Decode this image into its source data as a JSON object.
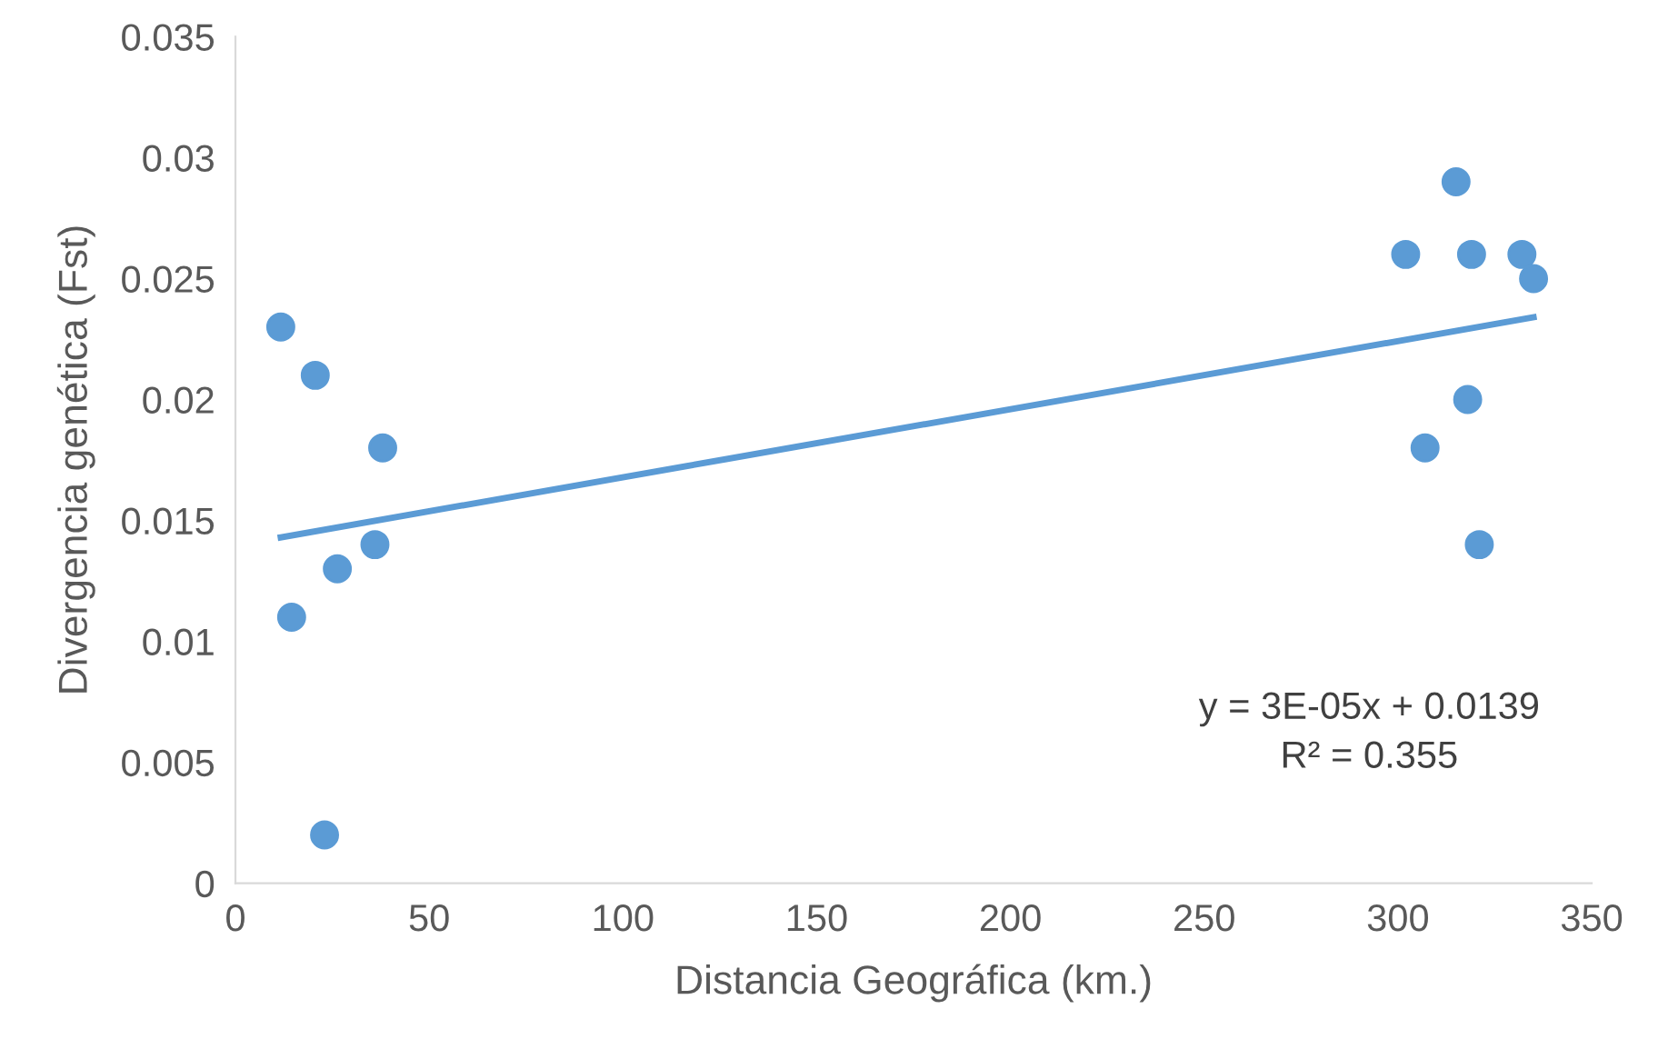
{
  "chart_data": {
    "type": "scatter",
    "xlabel": "Distancia Geográfica (km.)",
    "ylabel": "Divergencia genética (Fst)",
    "xlim": [
      0,
      350
    ],
    "ylim": [
      0,
      0.035
    ],
    "xticks": [
      0,
      50,
      100,
      150,
      200,
      250,
      300,
      350
    ],
    "yticks": [
      0,
      0.005,
      0.01,
      0.015,
      0.02,
      0.025,
      0.03,
      0.035
    ],
    "grid": false,
    "legend": false,
    "series": [
      {
        "marker": "circle",
        "color": "#5b9bd5",
        "x": [
          11.7,
          20.6,
          38,
          36,
          26.3,
          14.5,
          23,
          302,
          315,
          319,
          332,
          335,
          318,
          307,
          321
        ],
        "values": [
          0.023,
          0.021,
          0.018,
          0.014,
          0.013,
          0.011,
          0.002,
          0.026,
          0.029,
          0.026,
          0.026,
          0.025,
          0.02,
          0.018,
          0.014
        ]
      },
      {
        "type": "line",
        "color": "#5b9bd5",
        "x": [
          11.7,
          335
        ],
        "values": [
          0.0143,
          0.0234
        ]
      }
    ],
    "annotations": [
      "y = 3E-05x + 0.0139\nR² = 0.355"
    ]
  }
}
